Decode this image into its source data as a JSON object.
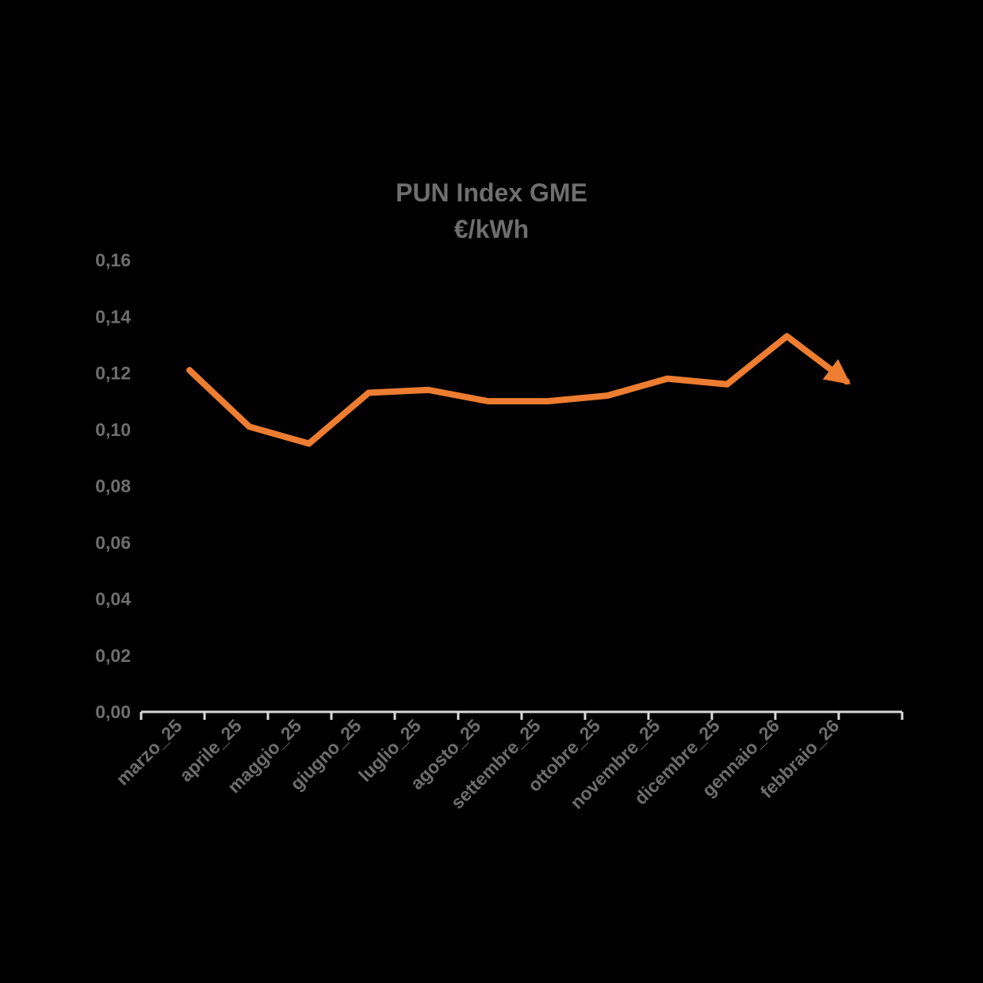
{
  "chart_data": {
    "type": "line",
    "title": "PUN Index GME",
    "subtitle": "€/kWh",
    "series_count": 1,
    "categories": [
      "marzo_25",
      "aprile_25",
      "maggio_25",
      "giugno_25",
      "luglio_25",
      "agosto_25",
      "settembre_25",
      "ottobre_25",
      "novembre_25",
      "dicembre_25",
      "gennaio_26",
      "febbraio_26"
    ],
    "values": [
      0.121,
      0.101,
      0.095,
      0.113,
      0.114,
      0.11,
      0.11,
      0.112,
      0.118,
      0.116,
      0.133,
      0.117
    ],
    "ylim": [
      0,
      0.16
    ],
    "ytick_step": 0.02,
    "ytick_labels": [
      "0,00",
      "0,02",
      "0,04",
      "0,06",
      "0,08",
      "0,10",
      "0,12",
      "0,14",
      "0,16"
    ],
    "xlabel": "",
    "ylabel": "",
    "grid": false,
    "legend": false,
    "x_label_rotation_deg": -45,
    "line_end": "arrowhead",
    "colors": {
      "line": "#ED7D31",
      "axis": "#D9D9D9",
      "tick_labels": "#6E6E6E",
      "title": "#6E6E6E",
      "background": "#000000"
    }
  }
}
